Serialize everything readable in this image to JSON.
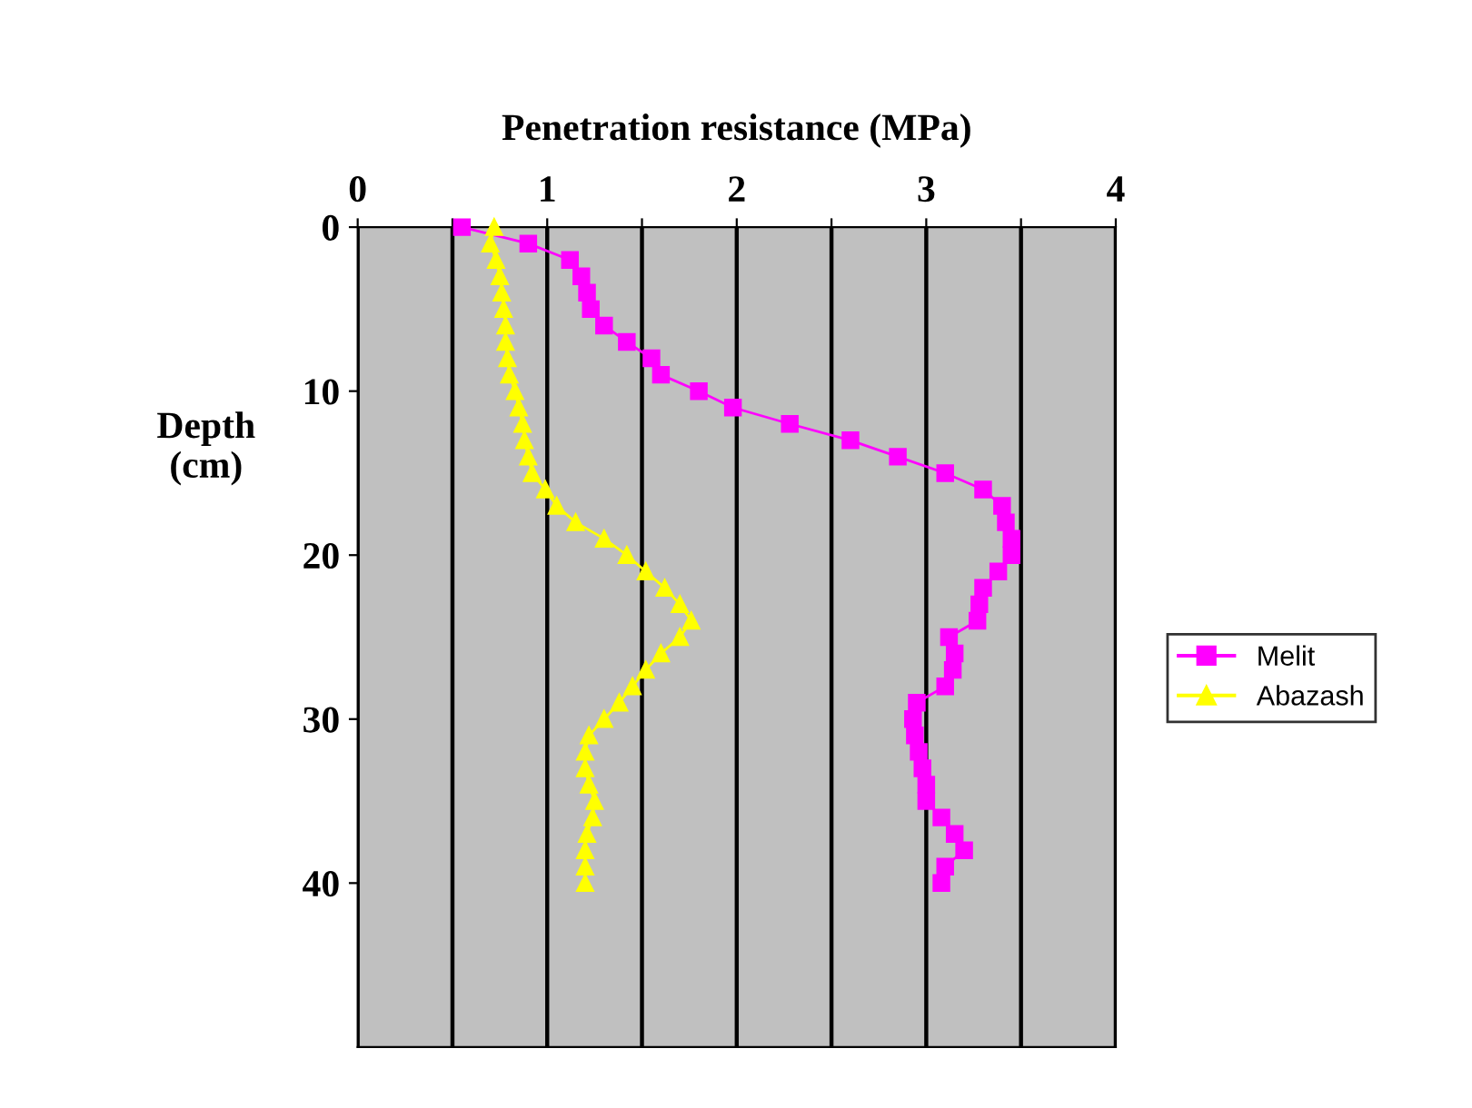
{
  "chart_data": {
    "type": "line",
    "xlabel": "Penetration resistance (MPa)",
    "ylabel": "Depth\n(cm)",
    "series": [
      {
        "name": "Melit",
        "color": "#ff00ff",
        "marker": "square",
        "x": [
          0.55,
          0.9,
          1.12,
          1.18,
          1.21,
          1.23,
          1.3,
          1.42,
          1.55,
          1.6,
          1.8,
          1.98,
          2.28,
          2.6,
          2.85,
          3.1,
          3.3,
          3.4,
          3.42,
          3.45,
          3.45,
          3.38,
          3.3,
          3.28,
          3.27,
          3.12,
          3.15,
          3.14,
          3.1,
          2.95,
          2.93,
          2.94,
          2.96,
          2.98,
          3.0,
          3.0,
          3.08,
          3.15,
          3.2,
          3.1,
          3.08
        ],
        "values": [
          0,
          1,
          2,
          3,
          4,
          5,
          6,
          7,
          8,
          9,
          10,
          11,
          12,
          13,
          14,
          15,
          16,
          17,
          18,
          19,
          20,
          21,
          22,
          23,
          24,
          25,
          26,
          27,
          28,
          29,
          30,
          31,
          32,
          33,
          34,
          35,
          36,
          37,
          38,
          39,
          40
        ]
      },
      {
        "name": "Abazash",
        "color": "#ffff00",
        "marker": "triangle",
        "x": [
          0.72,
          0.7,
          0.73,
          0.75,
          0.76,
          0.77,
          0.78,
          0.78,
          0.79,
          0.8,
          0.83,
          0.85,
          0.87,
          0.88,
          0.9,
          0.92,
          0.99,
          1.05,
          1.15,
          1.3,
          1.42,
          1.52,
          1.62,
          1.7,
          1.76,
          1.7,
          1.6,
          1.52,
          1.45,
          1.38,
          1.3,
          1.22,
          1.2,
          1.2,
          1.22,
          1.25,
          1.24,
          1.21,
          1.2,
          1.2,
          1.2
        ],
        "values": [
          0,
          1,
          2,
          3,
          4,
          5,
          6,
          7,
          8,
          9,
          10,
          11,
          12,
          13,
          14,
          15,
          16,
          17,
          18,
          19,
          20,
          21,
          22,
          23,
          24,
          25,
          26,
          27,
          28,
          29,
          30,
          31,
          32,
          33,
          34,
          35,
          36,
          37,
          38,
          39,
          40
        ]
      }
    ],
    "xlim": [
      0,
      4
    ],
    "xticks": [
      0,
      {
        "value": 0.5,
        "label": null
      },
      1,
      {
        "value": 1.5,
        "label": null
      },
      2,
      {
        "value": 2.5,
        "label": null
      },
      3,
      {
        "value": 3.5,
        "label": null
      },
      4
    ],
    "ylim": [
      50,
      0
    ],
    "yticks": [
      0,
      10,
      20,
      30,
      40
    ],
    "grid": "x",
    "legend": "right"
  }
}
